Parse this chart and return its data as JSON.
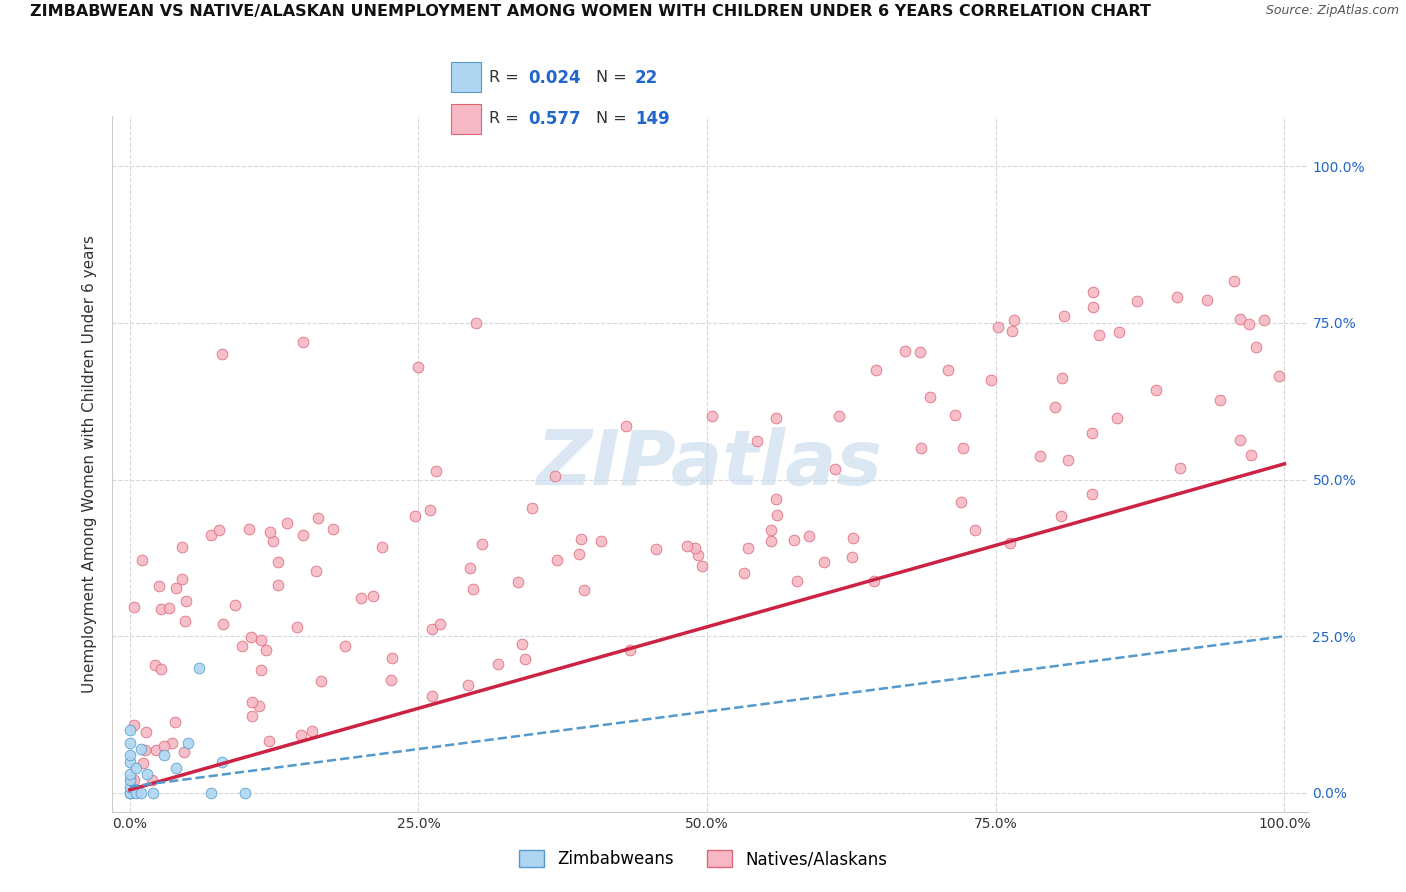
{
  "title": "ZIMBABWEAN VS NATIVE/ALASKAN UNEMPLOYMENT AMONG WOMEN WITH CHILDREN UNDER 6 YEARS CORRELATION CHART",
  "source": "Source: ZipAtlas.com",
  "ylabel": "Unemployment Among Women with Children Under 6 years",
  "watermark": "ZIPatlas",
  "background_color": "#ffffff",
  "grid_color": "#d8d8d8",
  "scatter_size": 60,
  "zimbabwean_color": "#aed6f1",
  "zimbabwean_edge": "#5599cc",
  "native_color": "#f5b8c4",
  "native_edge": "#dd6677",
  "zim_trend_color": "#5599cc",
  "native_trend_color": "#cc2244",
  "title_fontsize": 11.5,
  "axis_label_fontsize": 11,
  "tick_fontsize": 10,
  "source_fontsize": 9,
  "right_tick_color": "#2266cc",
  "zim_R": "0.024",
  "zim_N": "22",
  "nat_R": "0.577",
  "nat_N": "149",
  "legend_label_zim": "Zimbabweans",
  "legend_label_nat": "Natives/Alaskans",
  "xtick_labels": [
    "0.0%",
    "25.0%",
    "50.0%",
    "75.0%",
    "100.0%"
  ],
  "ytick_labels_right": [
    "0.0%",
    "25.0%",
    "50.0%",
    "75.0%",
    "100.0%"
  ],
  "ytick_vals": [
    0.0,
    0.25,
    0.5,
    0.75,
    1.0
  ],
  "xtick_vals": [
    0.0,
    0.25,
    0.5,
    0.75,
    1.0
  ],
  "zim_trend_intercept": 0.01,
  "zim_trend_slope": 0.24,
  "nat_trend_intercept": 0.005,
  "nat_trend_slope": 0.52
}
